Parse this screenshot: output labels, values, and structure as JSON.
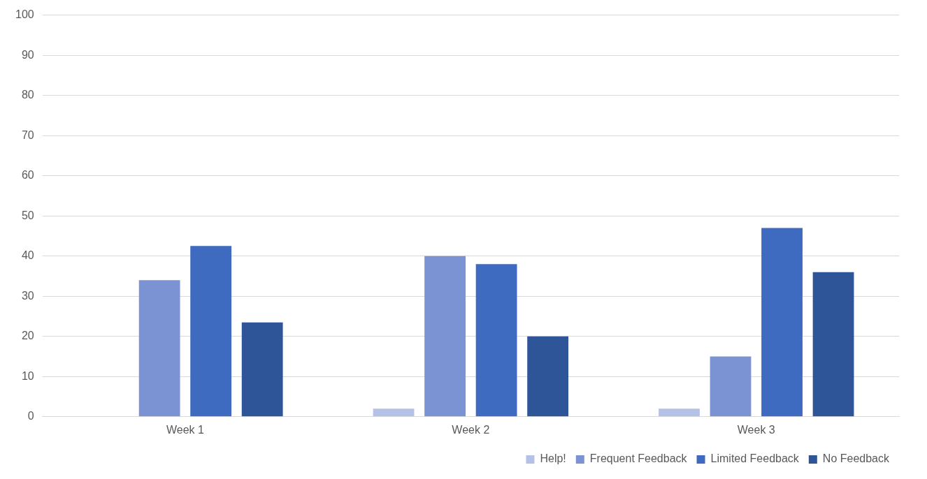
{
  "chart_data": {
    "type": "bar",
    "categories": [
      "Week 1",
      "Week 2",
      "Week 3"
    ],
    "series": [
      {
        "name": "Help!",
        "color": "#b4c2e7",
        "values": [
          0,
          2,
          2
        ]
      },
      {
        "name": "Frequent Feedback",
        "color": "#7b93d2",
        "values": [
          34,
          40,
          15
        ]
      },
      {
        "name": "Limited Feedback",
        "color": "#3e6bbf",
        "values": [
          42.5,
          38,
          47
        ]
      },
      {
        "name": "No Feedback",
        "color": "#2e5597",
        "values": [
          23.5,
          20,
          36
        ]
      }
    ],
    "ylim": [
      0,
      100
    ],
    "yticks": [
      0,
      10,
      20,
      30,
      40,
      50,
      60,
      70,
      80,
      90,
      100
    ],
    "grid": true,
    "legend": "bottom"
  }
}
